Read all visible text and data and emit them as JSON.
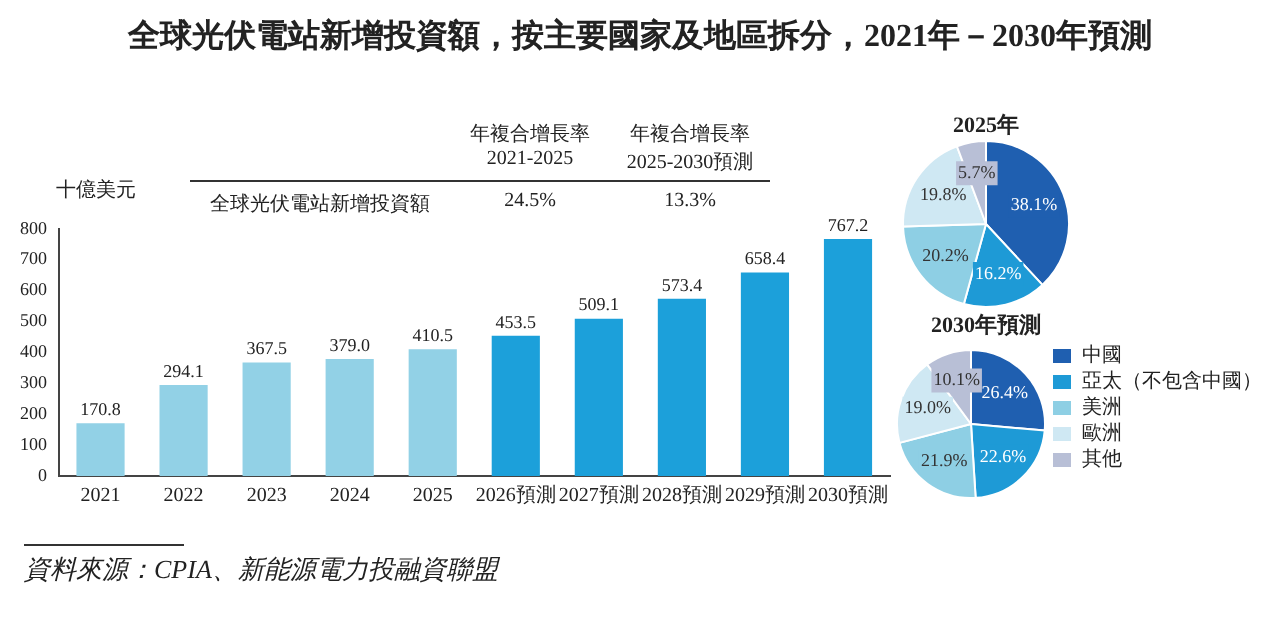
{
  "chart_data": [
    {
      "type": "bar",
      "title": "全球光伏電站新增投資額，按主要國家及地區拆分，2021年－2030年預測",
      "ylabel": "十億美元",
      "categories": [
        "2021",
        "2022",
        "2023",
        "2024",
        "2025",
        "2026預測",
        "2027預測",
        "2028預測",
        "2029預測",
        "2030預測"
      ],
      "values": [
        170.8,
        294.1,
        367.5,
        379.0,
        410.5,
        453.5,
        509.1,
        573.4,
        658.4,
        767.2
      ],
      "value_labels": [
        "170.8",
        "294.1",
        "367.5",
        "379.0",
        "410.5",
        "453.5",
        "509.1",
        "573.4",
        "658.4",
        "767.2"
      ],
      "colors": [
        "#92d1e6",
        "#92d1e6",
        "#92d1e6",
        "#92d1e6",
        "#92d1e6",
        "#1ca0da",
        "#1ca0da",
        "#1ca0da",
        "#1ca0da",
        "#1ca0da"
      ],
      "ylim": [
        0,
        800
      ],
      "yticks": [
        0,
        100,
        200,
        300,
        400,
        500,
        600,
        700,
        800
      ],
      "annotations": [
        "年複合增長率\n2021-2025",
        "年複合增長率\n2025-2030預測",
        "全球光伏電站新增投資額",
        "24.5%",
        "13.3%",
        "資料來源：CPIA、新能源電力投融資聯盟"
      ]
    },
    {
      "type": "pie",
      "title": "2025年",
      "categories": [
        null,
        null,
        null,
        null,
        null
      ],
      "values": [
        38.1,
        16.2,
        20.2,
        19.8,
        5.7
      ],
      "value_labels": [
        "38.1%",
        "16.2%",
        "20.2%",
        "19.8%",
        "5.7%"
      ],
      "colors": [
        "#1f5fb0",
        "#1e9ad6",
        "#8ecfe4",
        "#cfe8f3",
        "#b8bfd6"
      ]
    },
    {
      "type": "pie",
      "title": "2030年預測",
      "categories": [
        "中國",
        "亞太（不包含中國）",
        "美洲",
        "歐洲",
        "其他"
      ],
      "values": [
        26.4,
        22.6,
        21.9,
        19.0,
        10.1
      ],
      "value_labels": [
        "26.4%",
        "22.6%",
        "21.9%",
        "19.0%",
        "10.1%"
      ],
      "colors": [
        "#1f5fb0",
        "#1e9ad6",
        "#8ecfe4",
        "#cfe8f3",
        "#b8bfd6"
      ],
      "legend": "right"
    }
  ]
}
